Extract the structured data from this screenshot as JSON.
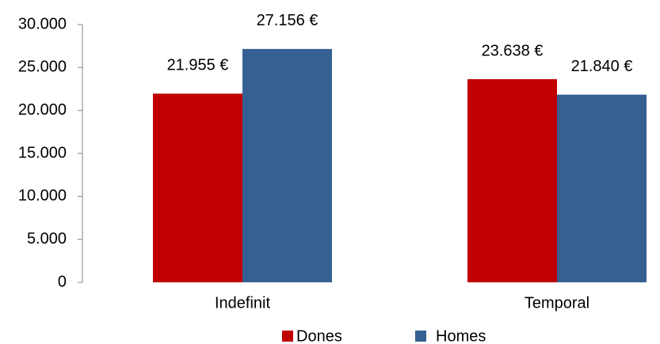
{
  "chart_data": {
    "type": "bar",
    "categories": [
      "Indefinit",
      "Temporal"
    ],
    "series": [
      {
        "name": "Dones",
        "color": "#c00000",
        "values": [
          21955,
          23638
        ],
        "value_labels": [
          "21.955 €",
          "23.638 €"
        ]
      },
      {
        "name": "Homes",
        "color": "#376092",
        "values": [
          27156,
          21840
        ],
        "value_labels": [
          "27.156 €",
          "21.840 €"
        ]
      }
    ],
    "ylim": [
      0,
      30000
    ],
    "yticks": [
      0,
      {
        "value": 5000,
        "label": "5.000"
      },
      {
        "value": 10000,
        "label": "10.000"
      },
      {
        "value": 15000,
        "label": "15.000"
      },
      {
        "value": 20000,
        "label": "20.000"
      },
      {
        "value": 25000,
        "label": "25.000"
      },
      {
        "value": 30000,
        "label": "30.000"
      }
    ],
    "legend": "bottom"
  }
}
